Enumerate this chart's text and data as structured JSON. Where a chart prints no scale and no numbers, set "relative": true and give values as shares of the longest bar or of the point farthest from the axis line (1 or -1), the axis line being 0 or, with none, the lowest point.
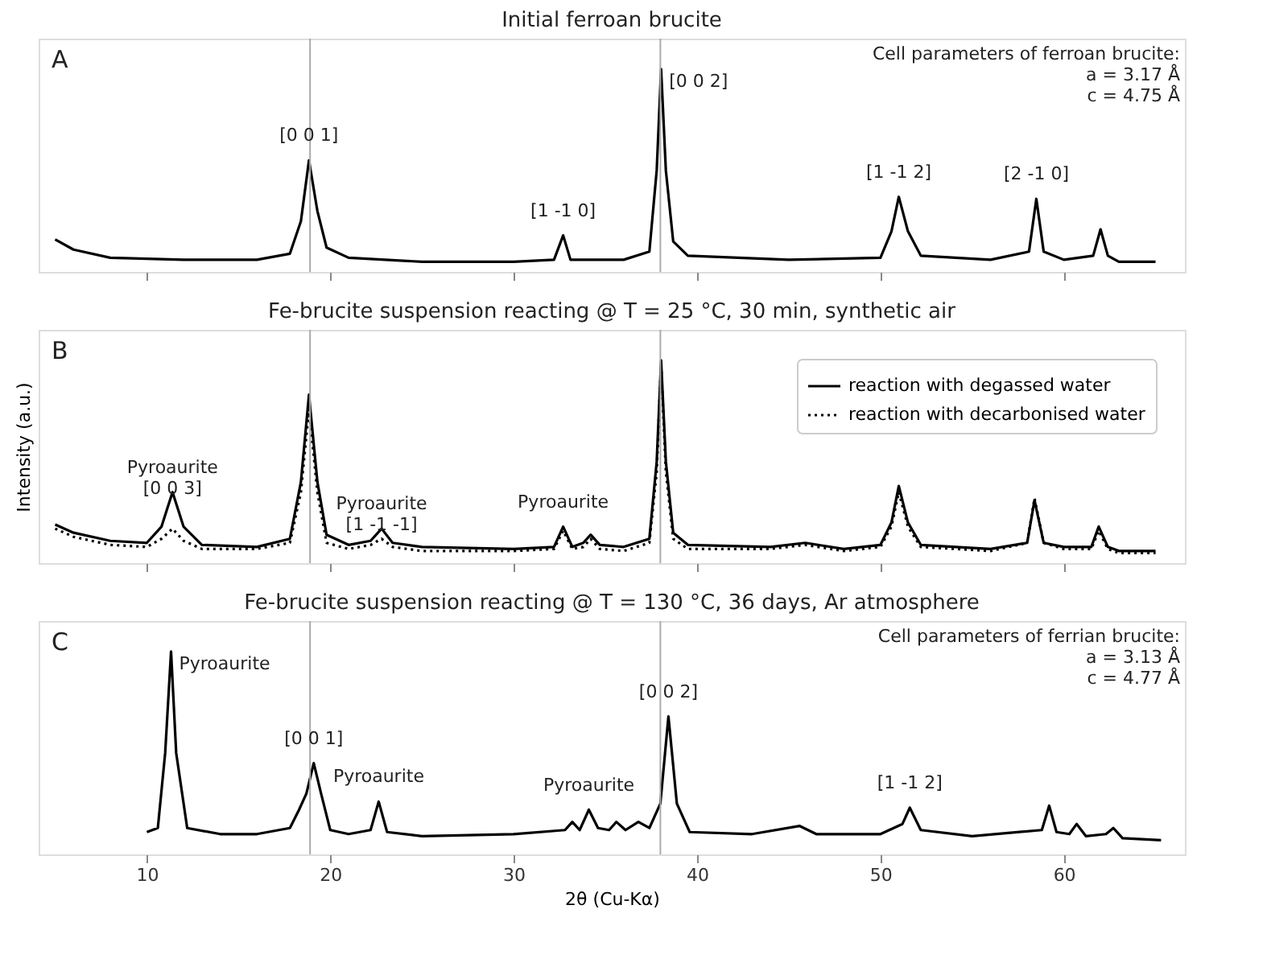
{
  "chart_data": [
    {
      "type": "line",
      "title": "Initial ferroan brucite",
      "relative": true,
      "xlim": [
        4.1,
        66.6
      ],
      "xticks": [
        10,
        20,
        30,
        40,
        50,
        60
      ],
      "tick_labels": false,
      "grid": false,
      "legend": false,
      "ref_lines": [
        {
          "axis": "x",
          "value": 18.9,
          "color": "#aaaaaa"
        },
        {
          "axis": "x",
          "value": 38.0,
          "color": "#aaaaaa"
        }
      ],
      "annotations": [
        "A",
        "Cell parameters of ferroan brucite:\n a = 3.17 Å\n c = 4.75 Å",
        {
          "text": "[0 0 1]",
          "x": 18.84,
          "y": 0.55
        },
        {
          "text": "[1 -1 0]",
          "x": 32.7,
          "y": 0.18
        },
        {
          "text": "[0 0 2]",
          "x": 38.04,
          "y": 1.0
        },
        {
          "text": "[1 -1 2]",
          "x": 51.0,
          "y": 0.37
        },
        {
          "text": "[2 -1 0]",
          "x": 58.5,
          "y": 0.36
        }
      ],
      "series": [
        {
          "color": "#000000",
          "line_style": "solid",
          "x": [
            5,
            6,
            8,
            12,
            16,
            17.8,
            18.4,
            18.84,
            19.3,
            19.8,
            21,
            25,
            30,
            32.2,
            32.7,
            33.1,
            36,
            37.4,
            37.8,
            38.04,
            38.3,
            38.7,
            39.5,
            45,
            50,
            50.6,
            51.0,
            51.5,
            52.2,
            56,
            58.1,
            58.5,
            58.9,
            60,
            61.6,
            62.0,
            62.4,
            63,
            65
          ],
          "values": [
            0.16,
            0.11,
            0.07,
            0.06,
            0.06,
            0.09,
            0.25,
            0.55,
            0.3,
            0.12,
            0.07,
            0.05,
            0.05,
            0.06,
            0.18,
            0.06,
            0.06,
            0.1,
            0.5,
            1.0,
            0.5,
            0.15,
            0.08,
            0.06,
            0.07,
            0.2,
            0.37,
            0.2,
            0.08,
            0.06,
            0.1,
            0.36,
            0.1,
            0.06,
            0.08,
            0.21,
            0.08,
            0.05,
            0.05
          ]
        }
      ]
    },
    {
      "type": "line",
      "title": "Fe-brucite suspension reacting @ T = 25 °C, 30 min, synthetic air",
      "ylabel": "Intensity (a.u.)",
      "relative": true,
      "xlim": [
        4.1,
        66.6
      ],
      "xticks": [
        10,
        20,
        30,
        40,
        50,
        60
      ],
      "tick_labels": false,
      "grid": false,
      "legend": "top right",
      "ref_lines": [
        {
          "axis": "x",
          "value": 18.9,
          "color": "#aaaaaa"
        },
        {
          "axis": "x",
          "value": 38.0,
          "color": "#aaaaaa"
        }
      ],
      "annotations": [
        "B",
        {
          "text": "Pyroaurite\n[0 0 3]",
          "x": 11.4,
          "y": 0.35
        },
        {
          "text": "Pyroaurite\n[1 -1 -1]",
          "x": 22.8,
          "y": 0.17
        },
        {
          "text": "Pyroaurite",
          "x": 32.7,
          "y": 0.18
        }
      ],
      "series": [
        {
          "name": "reaction with degassed water",
          "color": "#000000",
          "line_style": "solid",
          "x": [
            5,
            6,
            8,
            10,
            10.8,
            11.4,
            12.0,
            13,
            16,
            17.8,
            18.4,
            18.84,
            19.3,
            19.8,
            21,
            22.2,
            22.8,
            23.4,
            25,
            30,
            32.2,
            32.7,
            33.2,
            33.8,
            34.2,
            34.7,
            36,
            37.4,
            37.8,
            38.04,
            38.3,
            38.7,
            39.5,
            44,
            45.9,
            48,
            50,
            50.6,
            51.0,
            51.5,
            52.2,
            56,
            58.0,
            58.4,
            58.9,
            60,
            61.5,
            61.9,
            62.4,
            63,
            65
          ],
          "values": [
            0.19,
            0.15,
            0.11,
            0.1,
            0.18,
            0.35,
            0.18,
            0.09,
            0.08,
            0.12,
            0.4,
            0.83,
            0.4,
            0.14,
            0.09,
            0.11,
            0.17,
            0.1,
            0.08,
            0.07,
            0.08,
            0.18,
            0.08,
            0.1,
            0.14,
            0.09,
            0.08,
            0.12,
            0.5,
            1.0,
            0.5,
            0.15,
            0.09,
            0.08,
            0.1,
            0.07,
            0.09,
            0.2,
            0.38,
            0.2,
            0.09,
            0.07,
            0.1,
            0.31,
            0.1,
            0.08,
            0.08,
            0.18,
            0.08,
            0.06,
            0.06
          ]
        },
        {
          "name": "reaction with decarbonised water",
          "color": "#000000",
          "line_style": "dotted",
          "x": [
            5,
            6,
            8,
            10,
            10.8,
            11.4,
            12.0,
            13,
            16,
            17.8,
            18.4,
            18.84,
            19.3,
            19.8,
            21,
            22.2,
            22.8,
            23.4,
            25,
            30,
            32.2,
            32.7,
            33.2,
            33.8,
            34.2,
            34.7,
            36,
            37.4,
            37.8,
            38.04,
            38.3,
            38.7,
            39.5,
            44,
            45.9,
            48,
            50,
            50.6,
            51.0,
            51.5,
            52.2,
            56,
            58.0,
            58.4,
            58.9,
            60,
            61.5,
            61.9,
            62.4,
            63,
            65
          ],
          "values": [
            0.17,
            0.13,
            0.09,
            0.08,
            0.12,
            0.17,
            0.11,
            0.07,
            0.07,
            0.1,
            0.35,
            0.76,
            0.35,
            0.1,
            0.07,
            0.09,
            0.12,
            0.08,
            0.06,
            0.06,
            0.07,
            0.16,
            0.07,
            0.08,
            0.12,
            0.07,
            0.06,
            0.1,
            0.45,
            0.98,
            0.45,
            0.12,
            0.07,
            0.07,
            0.09,
            0.06,
            0.08,
            0.18,
            0.35,
            0.18,
            0.08,
            0.06,
            0.1,
            0.32,
            0.1,
            0.07,
            0.07,
            0.16,
            0.07,
            0.05,
            0.05
          ]
        }
      ]
    },
    {
      "type": "line",
      "title": "Fe-brucite suspension reacting @ T = 130 °C, 36 days, Ar atmosphere",
      "xlabel": "2θ (Cu-Kα)",
      "relative": true,
      "xlim": [
        4.1,
        66.6
      ],
      "xticks": [
        10,
        20,
        30,
        40,
        50,
        60
      ],
      "tick_labels": "x",
      "grid": false,
      "legend": false,
      "ref_lines": [
        {
          "axis": "x",
          "value": 18.9,
          "color": "#aaaaaa"
        },
        {
          "axis": "x",
          "value": 38.0,
          "color": "#aaaaaa"
        }
      ],
      "annotations": [
        "C",
        "Cell parameters of ferrian brucite:\n a = 3.13 Å\n c = 4.77 Å",
        {
          "text": "Pyroaurite",
          "x": 11.32,
          "y": 1.0
        },
        {
          "text": "[0 0 1]",
          "x": 19.1,
          "y": 0.45
        },
        {
          "text": "Pyroaurite",
          "x": 22.64,
          "y": 0.26
        },
        {
          "text": "Pyroaurite",
          "x": 34.1,
          "y": 0.22
        },
        {
          "text": "[0 0 2]",
          "x": 38.44,
          "y": 0.68
        },
        {
          "text": "[1 -1 2]",
          "x": 51.6,
          "y": 0.23
        }
      ],
      "series": [
        {
          "color": "#000000",
          "line_style": "solid",
          "x": [
            10,
            10.6,
            11.0,
            11.32,
            11.6,
            12.2,
            14,
            16,
            17.8,
            18.3,
            18.7,
            19.1,
            19.5,
            20,
            21,
            22.2,
            22.64,
            23.1,
            25,
            30,
            32.8,
            33.2,
            33.6,
            34.1,
            34.6,
            35.2,
            35.6,
            36.1,
            36.8,
            37.4,
            38.0,
            38.44,
            38.9,
            39.6,
            43,
            45.6,
            46.5,
            50,
            51.2,
            51.6,
            52.2,
            55,
            58.8,
            59.2,
            59.6,
            60.3,
            60.7,
            61.2,
            62.3,
            62.7,
            63.2,
            65.3
          ],
          "values": [
            0.11,
            0.13,
            0.5,
            1.0,
            0.5,
            0.13,
            0.1,
            0.1,
            0.13,
            0.22,
            0.3,
            0.45,
            0.3,
            0.12,
            0.1,
            0.12,
            0.26,
            0.11,
            0.09,
            0.1,
            0.12,
            0.16,
            0.12,
            0.22,
            0.13,
            0.12,
            0.16,
            0.12,
            0.16,
            0.13,
            0.25,
            0.68,
            0.25,
            0.11,
            0.1,
            0.14,
            0.1,
            0.1,
            0.15,
            0.23,
            0.12,
            0.09,
            0.12,
            0.24,
            0.11,
            0.1,
            0.15,
            0.09,
            0.1,
            0.13,
            0.08,
            0.07
          ]
        }
      ]
    }
  ]
}
